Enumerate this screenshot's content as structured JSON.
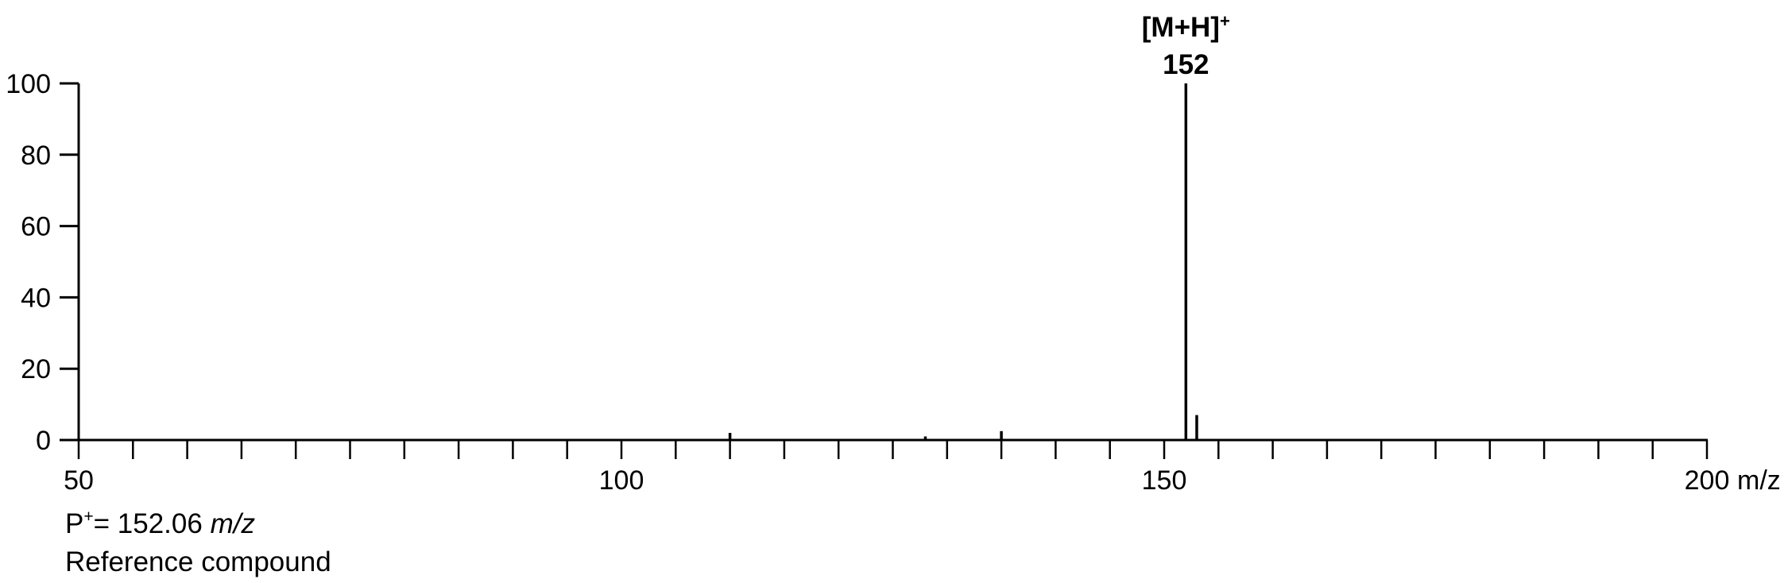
{
  "chart_data": {
    "type": "bar",
    "title": "",
    "xlabel": "m/z",
    "ylabel": "",
    "xlim": [
      50,
      200
    ],
    "ylim": [
      0,
      100
    ],
    "x_tick_labels": [
      "50",
      "100",
      "150",
      "200"
    ],
    "x_unit_label": "m/z",
    "y_tick_labels": [
      "0",
      "20",
      "40",
      "60",
      "80",
      "100"
    ],
    "grid": false,
    "series": [
      {
        "x": [
          110,
          128,
          135,
          152,
          153
        ],
        "values": [
          2,
          1,
          2.5,
          100,
          7
        ]
      }
    ],
    "annotations": [
      {
        "x": 152,
        "label": "[M+H]",
        "superscript": "+",
        "value_label": "152"
      }
    ]
  },
  "footer": {
    "precursor_prefix": "P",
    "precursor_sup": "+",
    "precursor_eq": "=  152.06 ",
    "precursor_unit": "m/z",
    "caption": "Reference compound"
  },
  "colors": {
    "ink": "#000000",
    "background": "#ffffff"
  }
}
